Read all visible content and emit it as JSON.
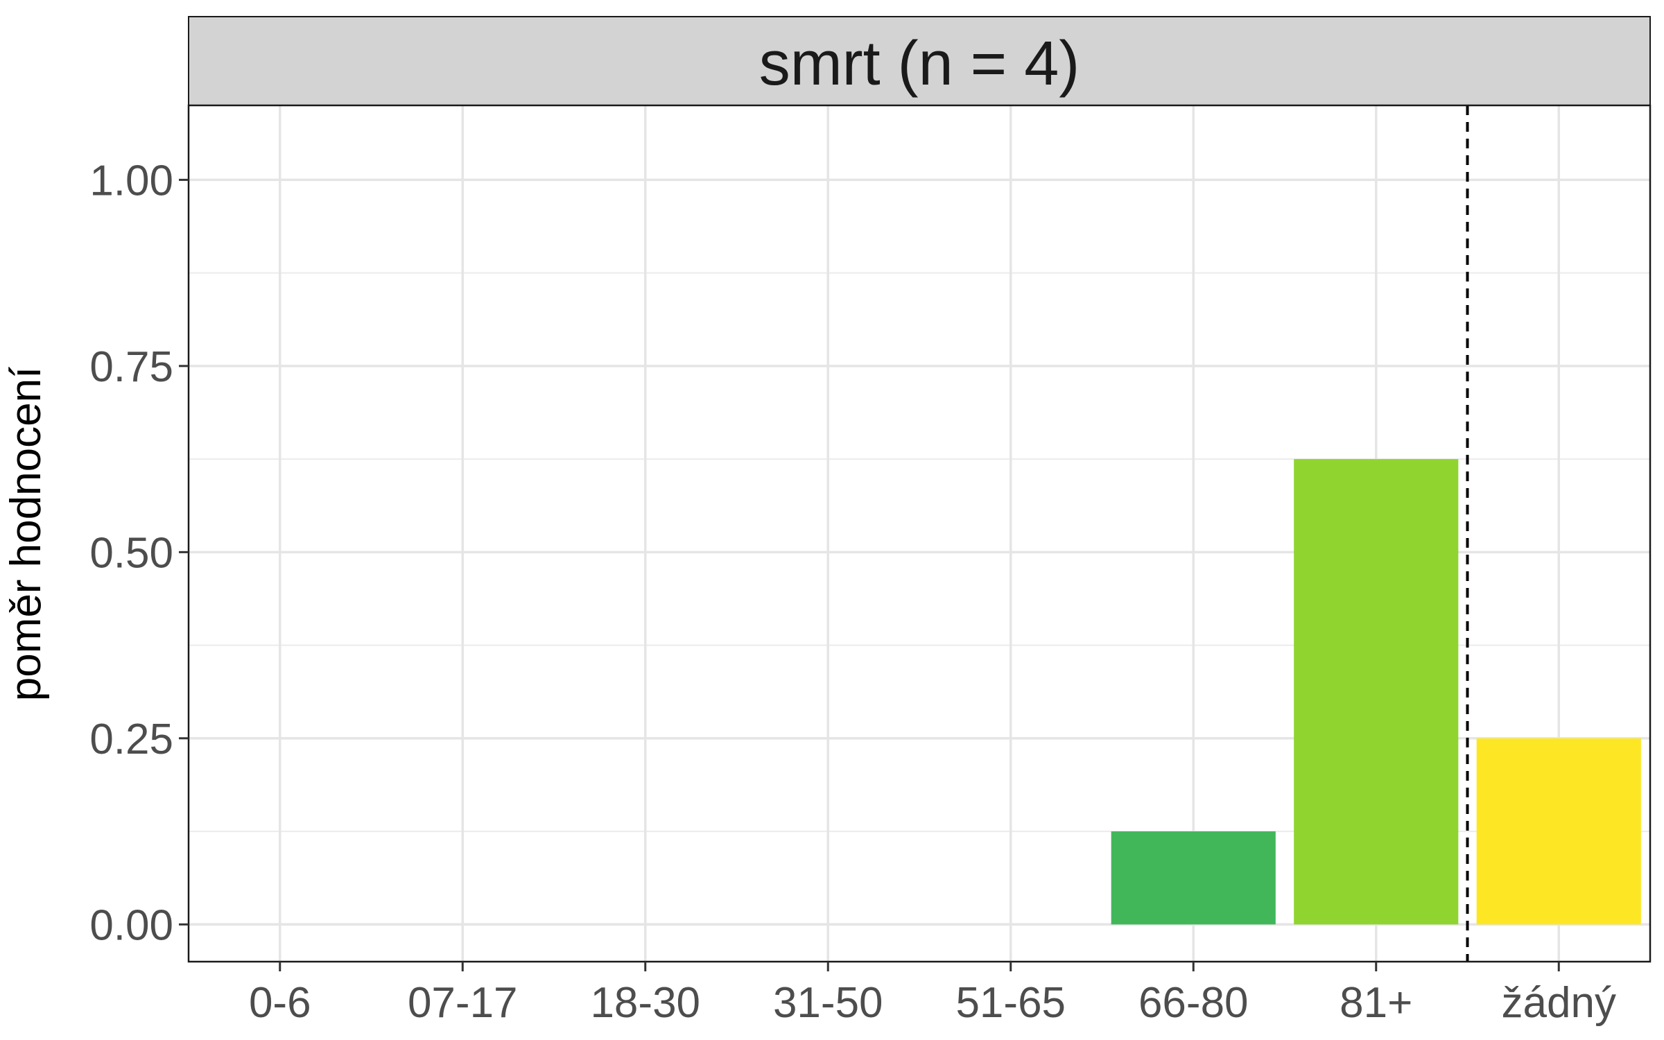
{
  "chart_data": {
    "type": "bar",
    "title": "smrt (n = 4)",
    "xlabel": "",
    "ylabel": "poměr hodnocení",
    "categories": [
      "0-6",
      "07-17",
      "18-30",
      "31-50",
      "51-65",
      "66-80",
      "81+",
      "žádný"
    ],
    "values": [
      0,
      0,
      0,
      0,
      0,
      0.125,
      0.625,
      0.25
    ],
    "bar_colors": [
      "#440154",
      "#443983",
      "#31688e",
      "#21918c",
      "#35b779",
      "#41b75a",
      "#90d52f",
      "#fde725"
    ],
    "ylim": [
      -0.05,
      1.1
    ],
    "yticks": [
      0,
      0.25,
      0.5,
      0.75,
      1.0
    ],
    "ytick_labels": [
      "0.00",
      "0.25",
      "0.50",
      "0.75",
      "1.00"
    ],
    "reference_line": {
      "between_categories": [
        "81+",
        "žádný"
      ],
      "style": "dashed"
    },
    "grid": true,
    "strip_color": "#d3d3d3"
  }
}
